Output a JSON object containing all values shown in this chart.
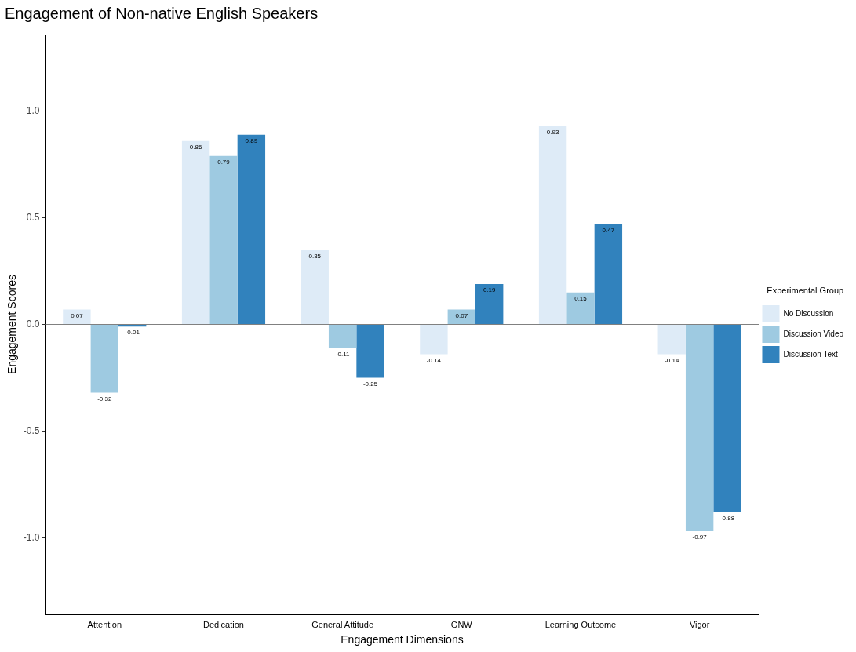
{
  "chart_data": {
    "type": "bar",
    "title": "Engagement of Non-native English Speakers",
    "xlabel": "Engagement Dimensions",
    "ylabel": "Engagement Scores",
    "legend_title": "Experimental Group",
    "categories": [
      "Attention",
      "Dedication",
      "General Attitude",
      "GNW",
      "Learning Outcome",
      "Vigor"
    ],
    "series": [
      {
        "name": "No Discussion",
        "color": "#deebf7",
        "values": [
          0.07,
          0.86,
          0.35,
          -0.14,
          0.93,
          -0.14
        ]
      },
      {
        "name": "Discussion Video",
        "color": "#9ecae1",
        "values": [
          -0.32,
          0.79,
          -0.11,
          0.07,
          0.15,
          -0.97
        ]
      },
      {
        "name": "Discussion Text",
        "color": "#3182bd",
        "values": [
          -0.01,
          0.89,
          -0.25,
          0.19,
          0.47,
          -0.88
        ]
      }
    ],
    "ylim": [
      -1.36,
      1.36
    ],
    "yticks": [
      {
        "value": -1,
        "label": "-1.0"
      },
      {
        "value": -0.5,
        "label": "-0.5"
      },
      {
        "value": 0,
        "label": "0.0"
      },
      {
        "value": 0.5,
        "label": "0.5"
      },
      {
        "value": 1,
        "label": "1.0"
      }
    ],
    "ref_lines": [
      {
        "axis": "y",
        "value": 0,
        "color": "#808080"
      }
    ],
    "data_labels": true,
    "grid": false,
    "legend": "right"
  }
}
